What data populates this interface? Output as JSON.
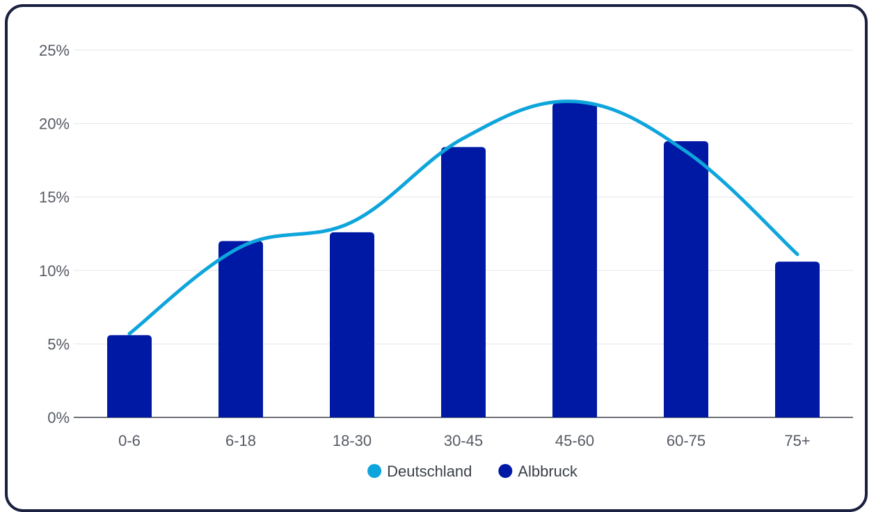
{
  "chart_data": {
    "type": "bar",
    "categories": [
      "0-6",
      "6-18",
      "18-30",
      "30-45",
      "45-60",
      "60-75",
      "75+"
    ],
    "series": [
      {
        "name": "Deutschland",
        "type": "line",
        "smooth": true,
        "color": "#0ea5dc",
        "values": [
          5.7,
          11.6,
          13.3,
          19.0,
          21.5,
          18.1,
          11.1
        ]
      },
      {
        "name": "Albbruck",
        "type": "bar",
        "color": "#0019a5",
        "values": [
          5.6,
          12.0,
          12.6,
          18.4,
          21.4,
          18.8,
          10.6
        ]
      }
    ],
    "yticks": [
      "0%",
      "5%",
      "10%",
      "15%",
      "20%",
      "25%"
    ],
    "ylim": [
      0,
      25
    ],
    "grid": true,
    "legend_position": "bottom-center",
    "title": "",
    "xlabel": "",
    "ylabel": ""
  }
}
